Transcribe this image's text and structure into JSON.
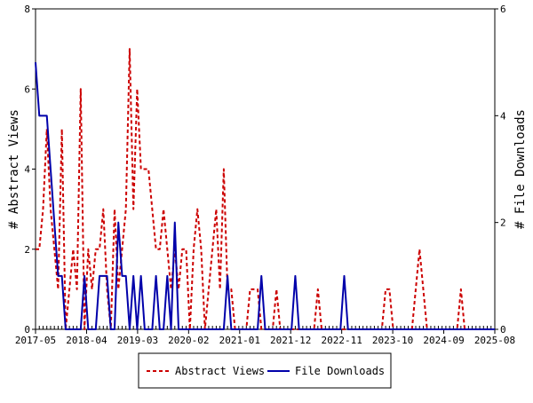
{
  "chart_data": {
    "type": "line",
    "ylabel": "# Abstract Views",
    "y2label": "# File Downloads",
    "ylim": [
      0,
      8
    ],
    "y2lim": [
      0,
      6
    ],
    "yticks": [
      "0",
      "2",
      "4",
      "6",
      "8"
    ],
    "y2ticks": [
      "0",
      "2",
      "4",
      "6"
    ],
    "xticks": [
      "2017-05",
      "2018-04",
      "2019-03",
      "2020-02",
      "2021-01",
      "2021-12",
      "2022-11",
      "2023-10",
      "2024-09",
      "2025-08"
    ],
    "grid": false,
    "legend_position": "bottom",
    "series": [
      {
        "name": "Abstract Views",
        "axis": "left",
        "color": "#cc0000",
        "style": "dashed",
        "values": [
          2,
          2,
          3,
          5,
          3,
          2,
          1,
          5,
          0,
          1,
          2,
          1,
          6,
          0,
          2,
          1,
          2,
          2,
          3,
          1,
          0,
          3,
          1,
          2,
          3,
          7,
          3,
          6,
          4,
          4,
          4,
          3,
          2,
          2,
          3,
          2,
          1,
          2,
          1,
          2,
          2,
          0,
          2,
          3,
          2,
          0,
          1,
          2,
          3,
          1,
          4,
          1,
          1,
          0,
          0,
          0,
          0,
          1,
          1,
          1,
          0,
          0,
          0,
          0,
          1,
          0,
          0,
          0,
          0,
          0,
          0,
          0,
          0,
          0,
          0,
          1,
          0,
          0,
          0,
          0,
          0,
          0,
          0,
          0,
          0,
          0,
          0,
          0,
          0,
          0,
          0,
          0,
          0,
          1,
          1,
          0,
          0,
          0,
          0,
          0,
          0,
          1,
          2,
          1,
          0,
          0,
          0,
          0,
          0,
          0,
          0,
          0,
          0,
          1,
          0,
          0,
          0,
          0,
          0,
          0,
          0,
          0,
          0
        ]
      },
      {
        "name": "File Downloads",
        "axis": "right",
        "color": "#0000aa",
        "style": "solid",
        "values": [
          5,
          4,
          4,
          4,
          3,
          2,
          1,
          1,
          0,
          0,
          0,
          0,
          0,
          1,
          0,
          0,
          0,
          1,
          1,
          1,
          0,
          0,
          2,
          1,
          1,
          0,
          1,
          0,
          1,
          0,
          0,
          0,
          1,
          0,
          0,
          1,
          0,
          2,
          0,
          0,
          0,
          0,
          0,
          0,
          0,
          0,
          0,
          0,
          0,
          0,
          0,
          1,
          0,
          0,
          0,
          0,
          0,
          0,
          0,
          0,
          1,
          0,
          0,
          0,
          0,
          0,
          0,
          0,
          0,
          1,
          0,
          0,
          0,
          0,
          0,
          0,
          0,
          0,
          0,
          0,
          0,
          0,
          1,
          0,
          0,
          0,
          0,
          0,
          0,
          0,
          0,
          0,
          0,
          0,
          0,
          0,
          0,
          0,
          0,
          0,
          0,
          0,
          0,
          0,
          0,
          0,
          0,
          0,
          0,
          0,
          0,
          0,
          0,
          0,
          0,
          0,
          0,
          0,
          0,
          0,
          0,
          0,
          0
        ]
      }
    ]
  }
}
